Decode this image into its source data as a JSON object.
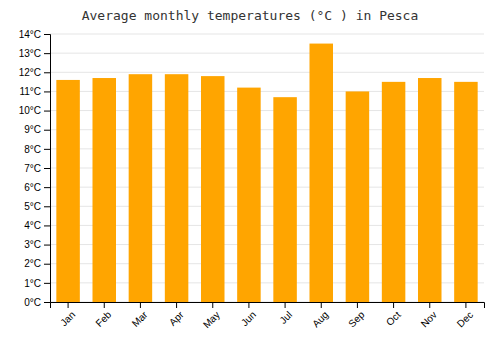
{
  "chart_data": {
    "type": "bar",
    "title": "Average monthly temperatures (°C ) in Pesca",
    "categories": [
      "Jan",
      "Feb",
      "Mar",
      "Apr",
      "May",
      "Jun",
      "Jul",
      "Aug",
      "Sep",
      "Oct",
      "Nov",
      "Dec"
    ],
    "values": [
      11.6,
      11.7,
      11.9,
      11.9,
      11.8,
      11.2,
      10.7,
      13.5,
      11.0,
      11.5,
      11.7,
      11.5
    ],
    "color": "#FFA500",
    "ylim": [
      0,
      14
    ],
    "yticks": [
      {
        "value": 0,
        "label": "0°C"
      },
      {
        "value": 1,
        "label": "1°C"
      },
      {
        "value": 2,
        "label": "2°C"
      },
      {
        "value": 3,
        "label": "3°C"
      },
      {
        "value": 4,
        "label": "4°C"
      },
      {
        "value": 5,
        "label": "5°C"
      },
      {
        "value": 6,
        "label": "6°C"
      },
      {
        "value": 7,
        "label": "7°C"
      },
      {
        "value": 8,
        "label": "8°C"
      },
      {
        "value": 9,
        "label": "9°C"
      },
      {
        "value": 10,
        "label": "10°C"
      },
      {
        "value": 11,
        "label": "11°C"
      },
      {
        "value": 12,
        "label": "12°C"
      },
      {
        "value": 13,
        "label": "13°C"
      },
      {
        "value": 14,
        "label": "14°C"
      }
    ],
    "grid": true
  }
}
